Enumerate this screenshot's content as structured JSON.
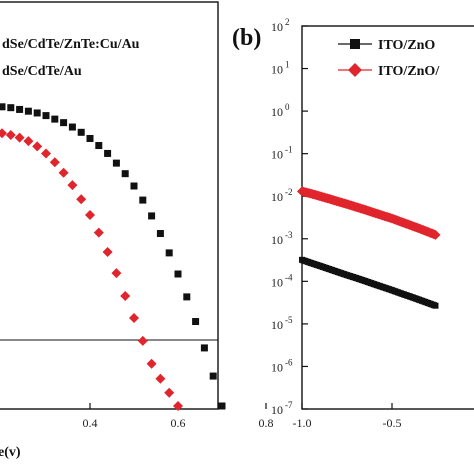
{
  "chart_data": [
    {
      "type": "scatter",
      "panel_label": "",
      "xlabel": "e(v)",
      "ylabel": "",
      "xlim": [
        0.0,
        0.8
      ],
      "x_ticks": [
        "0.4",
        "0.6",
        "0.8"
      ],
      "legend": {
        "placement": "top",
        "entries": [
          "dSe/CdTe/ZnTe:Cu/Au",
          "dSe/CdTe/Au"
        ]
      },
      "reference_line": 0.0,
      "series": [
        {
          "name": "dSe/CdTe/ZnTe:Cu/Au",
          "color": "#111111",
          "marker": "square",
          "x": [
            0.2,
            0.22,
            0.24,
            0.26,
            0.28,
            0.3,
            0.32,
            0.34,
            0.36,
            0.38,
            0.4,
            0.42,
            0.44,
            0.46,
            0.48,
            0.5,
            0.52,
            0.54,
            0.56,
            0.58,
            0.6,
            0.62,
            0.64,
            0.66,
            0.68,
            0.7
          ],
          "y": [
            -26.5,
            -26.4,
            -26.2,
            -26.0,
            -25.8,
            -25.5,
            -25.1,
            -24.7,
            -24.2,
            -23.6,
            -22.9,
            -22.1,
            -21.2,
            -20.1,
            -18.9,
            -17.5,
            -15.9,
            -14.1,
            -12.1,
            -9.9,
            -7.5,
            -4.9,
            -2.1,
            0.9,
            4.1,
            7.5
          ]
        },
        {
          "name": "dSe/CdTe/Au",
          "color": "#e0252d",
          "marker": "diamond",
          "x": [
            0.2,
            0.22,
            0.24,
            0.26,
            0.28,
            0.3,
            0.32,
            0.34,
            0.36,
            0.38,
            0.4,
            0.42,
            0.44,
            0.46,
            0.48,
            0.5,
            0.52,
            0.54,
            0.56,
            0.58,
            0.6
          ],
          "y": [
            -23.5,
            -23.3,
            -23.0,
            -22.6,
            -22.0,
            -21.2,
            -20.2,
            -19.0,
            -17.6,
            -16.0,
            -14.2,
            -12.2,
            -10.0,
            -7.6,
            -5.0,
            -2.5,
            0.1,
            2.7,
            4.4,
            6.0,
            7.5
          ]
        }
      ]
    },
    {
      "type": "scatter",
      "panel_label": "(b)",
      "xlabel": "",
      "ylabel": "",
      "yscale": "log",
      "ylim": [
        1e-07,
        100
      ],
      "xlim": [
        -1.0,
        -0.25
      ],
      "x_ticks": [
        "-1.0",
        "-0.5"
      ],
      "y_ticks": [
        {
          "base": "10",
          "exp": "2"
        },
        {
          "base": "10",
          "exp": "1"
        },
        {
          "base": "10",
          "exp": "0"
        },
        {
          "base": "10",
          "exp": "-1"
        },
        {
          "base": "10",
          "exp": "-2"
        },
        {
          "base": "10",
          "exp": "-3"
        },
        {
          "base": "10",
          "exp": "-4"
        },
        {
          "base": "10",
          "exp": "-5"
        },
        {
          "base": "10",
          "exp": "-6"
        },
        {
          "base": "10",
          "exp": "-7"
        }
      ],
      "legend": {
        "placement": "top",
        "entries": [
          "ITO/ZnO",
          "ITO/ZnO/"
        ]
      },
      "series": [
        {
          "name": "ITO/ZnO",
          "color": "#111111",
          "marker": "square",
          "x": [
            -1.0,
            -0.95,
            -0.9,
            -0.85,
            -0.8,
            -0.75,
            -0.7,
            -0.65,
            -0.6,
            -0.55,
            -0.5,
            -0.45,
            -0.4,
            -0.35,
            -0.3,
            -0.25
          ],
          "y": [
            0.00032,
            0.00027,
            0.00023,
            0.000195,
            0.000165,
            0.00014,
            0.00012,
            0.000102,
            8.6e-05,
            7.3e-05,
            6.2e-05,
            5.2e-05,
            4.4e-05,
            3.7e-05,
            3.1e-05,
            2.6e-05
          ]
        },
        {
          "name": "ITO/ZnO/",
          "color": "#e0252d",
          "marker": "diamond",
          "x": [
            -1.0,
            -0.95,
            -0.9,
            -0.85,
            -0.8,
            -0.75,
            -0.7,
            -0.65,
            -0.6,
            -0.55,
            -0.5,
            -0.45,
            -0.4,
            -0.35,
            -0.3,
            -0.25
          ],
          "y": [
            0.013,
            0.0115,
            0.01,
            0.0087,
            0.0075,
            0.0065,
            0.0056,
            0.0048,
            0.0041,
            0.0035,
            0.003,
            0.0025,
            0.0021,
            0.00175,
            0.00145,
            0.0012
          ]
        }
      ]
    }
  ]
}
